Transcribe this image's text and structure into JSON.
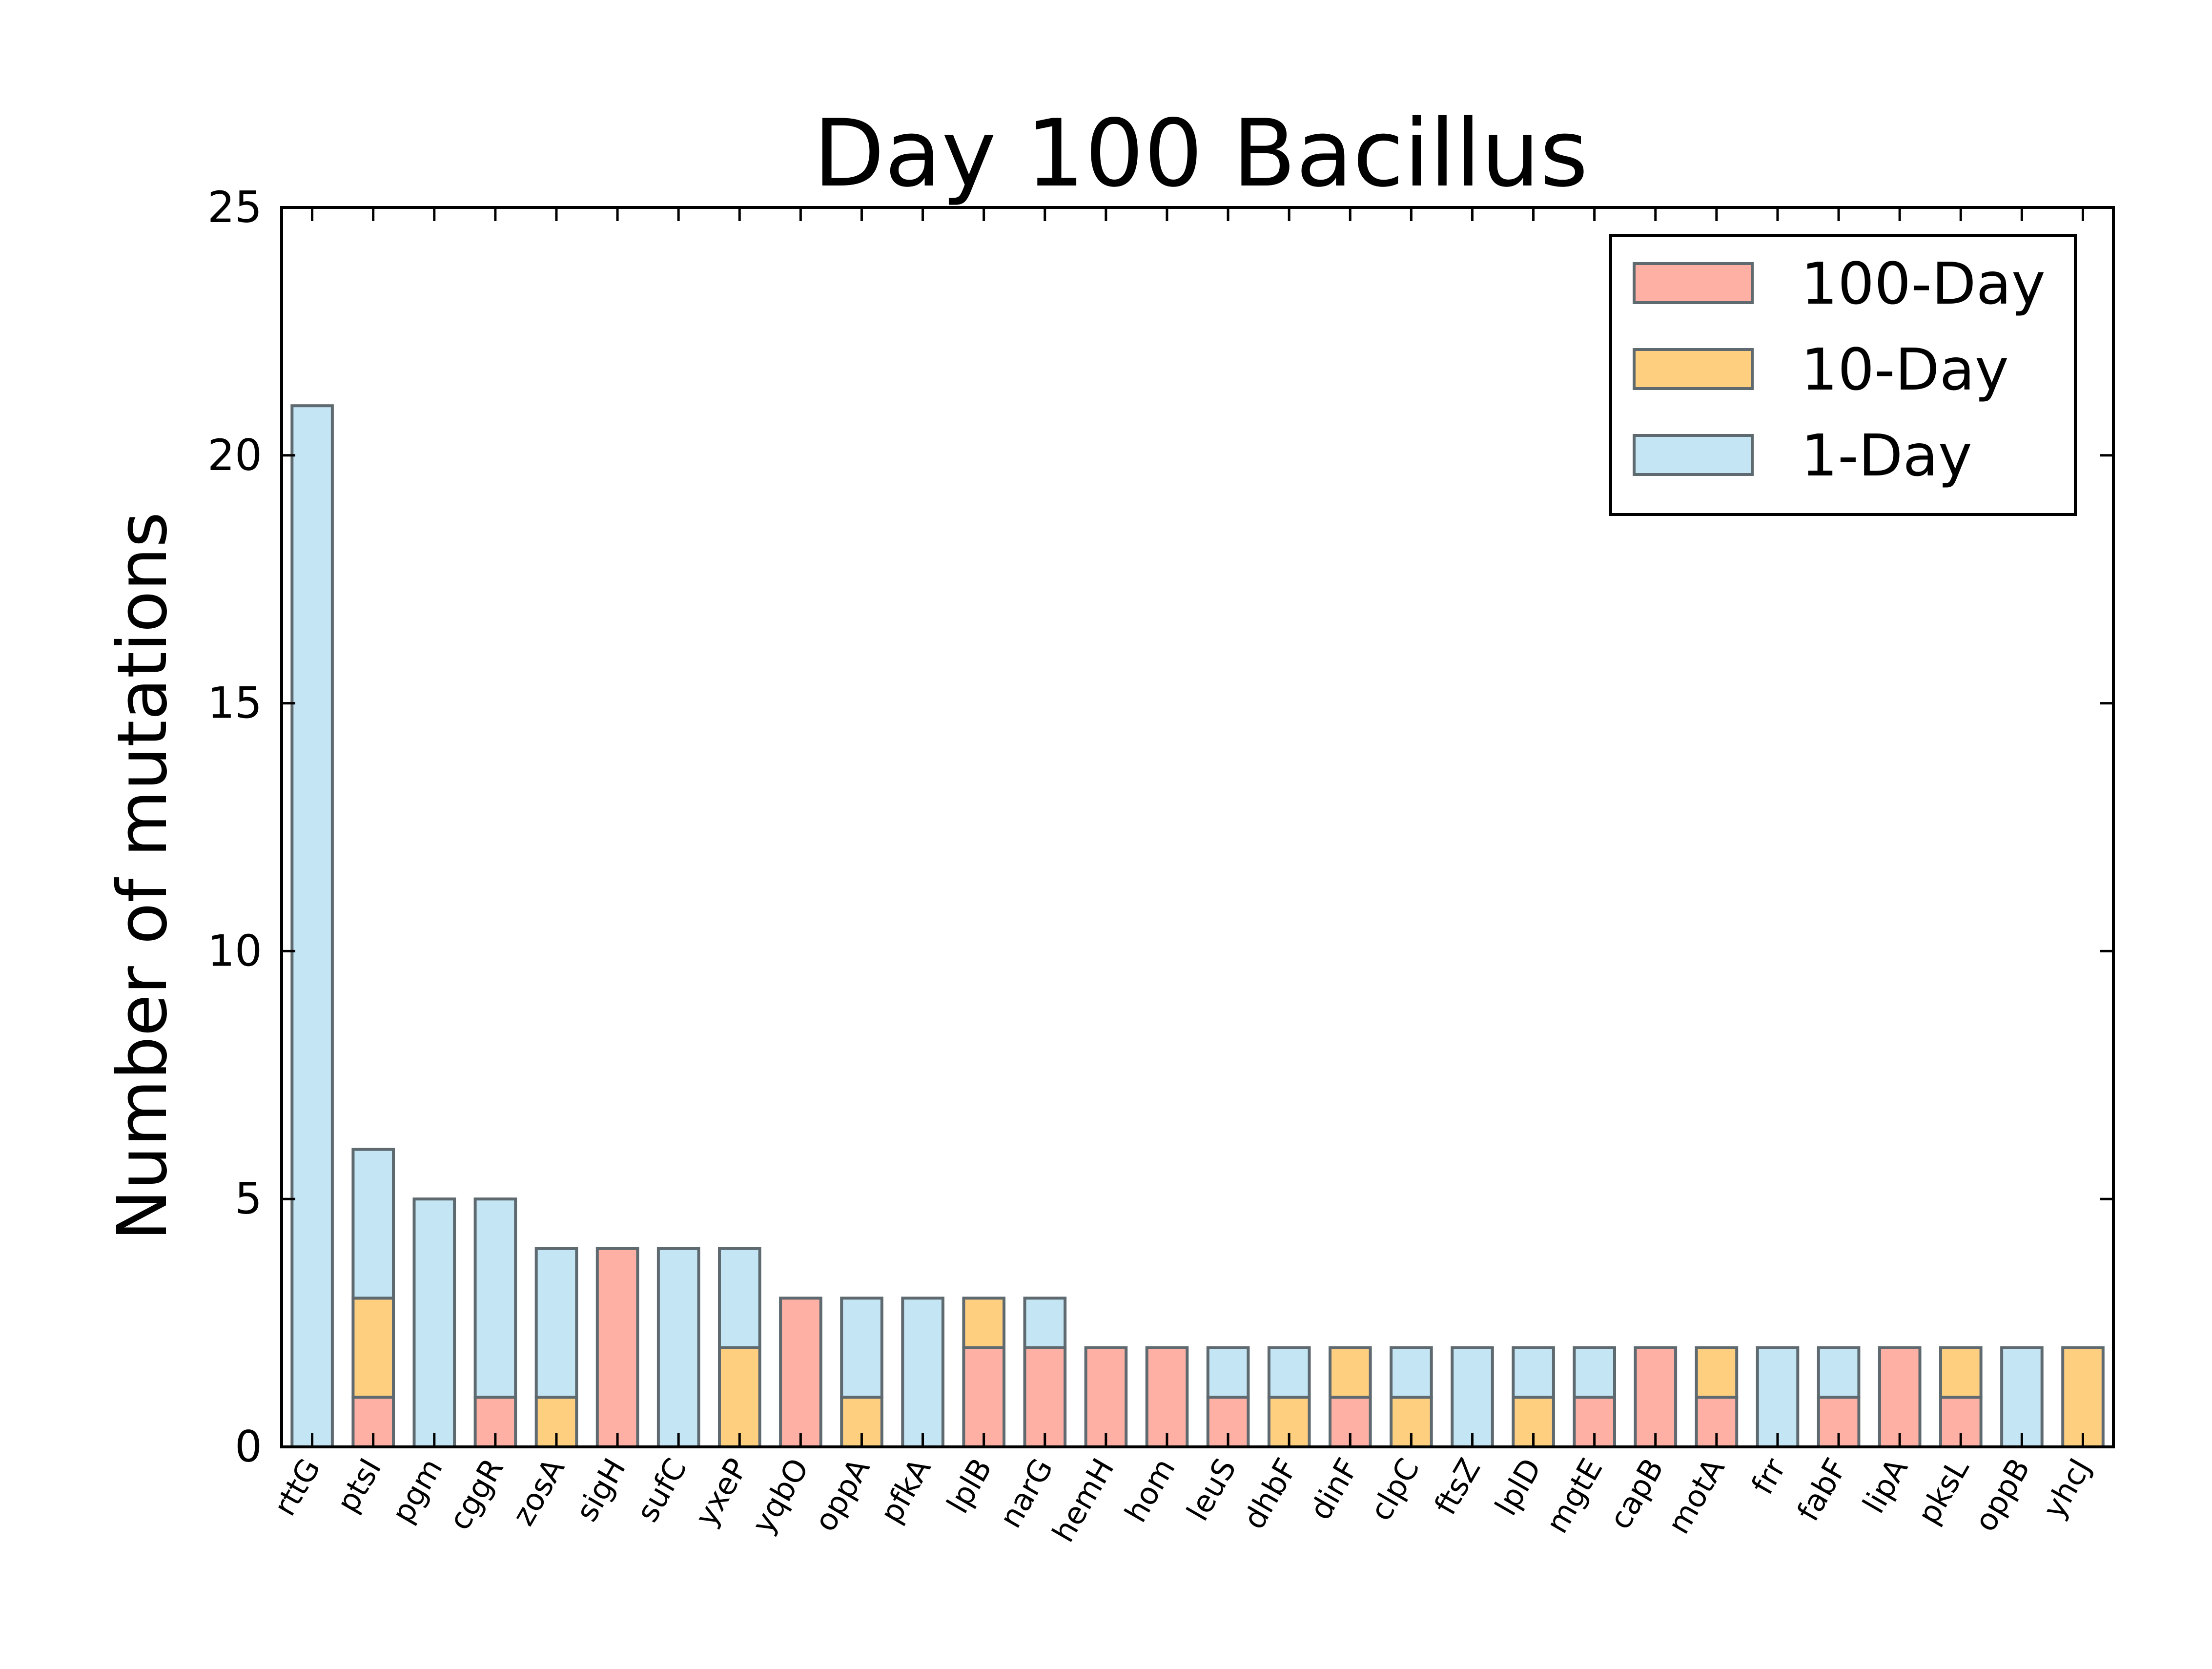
{
  "chart_data": {
    "type": "bar",
    "stacked": true,
    "title": "Day 100 Bacillus",
    "xlabel": "",
    "ylabel": "Number of mutations",
    "ylim": [
      0,
      25
    ],
    "yticks": [
      "0",
      "5",
      "10",
      "15",
      "20",
      "25"
    ],
    "legend_position": "top-right",
    "grid": false,
    "categories": [
      "rttG",
      "ptsI",
      "pgm",
      "cggR",
      "zosA",
      "sigH",
      "sufC",
      "yxeP",
      "yqbO",
      "oppA",
      "pfkA",
      "lplB",
      "narG",
      "hemH",
      "hom",
      "leuS",
      "dhbF",
      "dinF",
      "clpC",
      "ftsZ",
      "lplD",
      "mgtE",
      "capB",
      "motA",
      "frr",
      "fabF",
      "lipA",
      "pksL",
      "oppB",
      "yhcJ"
    ],
    "series": [
      {
        "name": "100-Day",
        "color": "#ffb0a4",
        "values": [
          0,
          1,
          0,
          1,
          0,
          4,
          0,
          0,
          3,
          0,
          0,
          2,
          2,
          2,
          2,
          1,
          0,
          1,
          0,
          0,
          0,
          1,
          2,
          1,
          0,
          1,
          2,
          1,
          0,
          0
        ]
      },
      {
        "name": "10-Day",
        "color": "#ffcf80",
        "values": [
          0,
          2,
          0,
          0,
          1,
          0,
          0,
          2,
          0,
          1,
          0,
          1,
          0,
          0,
          0,
          0,
          1,
          1,
          1,
          0,
          1,
          0,
          0,
          1,
          0,
          0,
          0,
          1,
          0,
          2
        ]
      },
      {
        "name": "1-Day",
        "color": "#c4e5f4",
        "values": [
          21,
          3,
          5,
          4,
          3,
          0,
          4,
          2,
          0,
          2,
          3,
          0,
          1,
          0,
          0,
          1,
          1,
          0,
          1,
          2,
          1,
          1,
          0,
          0,
          2,
          1,
          0,
          0,
          2,
          0
        ]
      }
    ],
    "legend_order": [
      "100-Day",
      "10-Day",
      "1-Day"
    ]
  }
}
